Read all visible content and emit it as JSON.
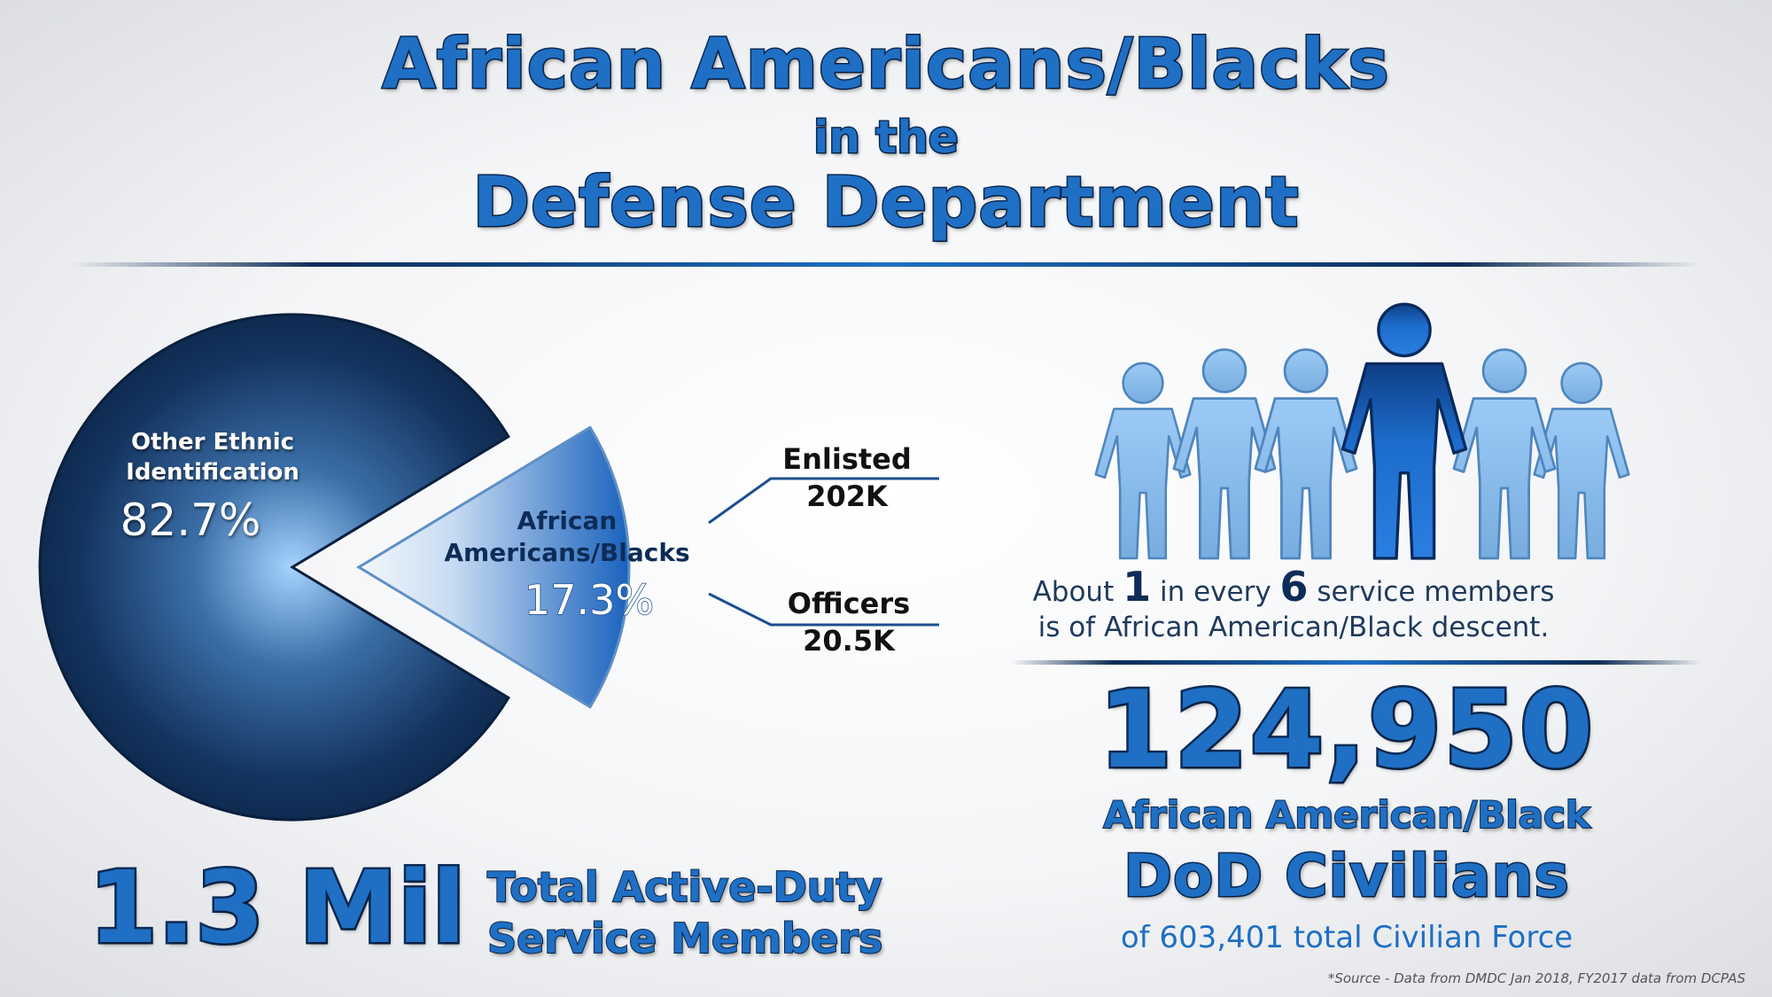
{
  "title": {
    "line1": "African Americans/Blacks",
    "line2": "in the",
    "line3": "Defense Department"
  },
  "colors": {
    "primary_blue": "#1f6fc4",
    "navy": "#0d2c57",
    "person_light": "#86b8ea",
    "person_highlight": "#1a64bf"
  },
  "chart_data": {
    "type": "pie",
    "slices": [
      {
        "label": "Other Ethnic Identification",
        "value": 82.7,
        "display": "82.7%"
      },
      {
        "label": "African Americans/Blacks",
        "value": 17.3,
        "display": "17.3%",
        "exploded": true
      }
    ],
    "breakdown": [
      {
        "label": "Enlisted",
        "value": "202K"
      },
      {
        "label": "Officers",
        "value": "20.5K"
      }
    ]
  },
  "pie_labels": {
    "other_line1": "Other Ethnic",
    "other_line2": "Identification",
    "other_value": "82.7%",
    "aa_line1": "African",
    "aa_line2": "Americans/Blacks",
    "aa_value": "17.3%"
  },
  "breakdown": {
    "enlisted_label": "Enlisted",
    "enlisted_value": "202K",
    "officers_label": "Officers",
    "officers_value": "20.5K"
  },
  "people_icon": {
    "icon": "people-group-icon",
    "total": 6,
    "highlighted": 1
  },
  "ratio": {
    "prefix": "About ",
    "num1": "1",
    "mid": " in every ",
    "num2": "6",
    "suffix": " service members",
    "line2": "is of African American/Black descent."
  },
  "civilians": {
    "number": "124,950",
    "label1": "African American/Black",
    "label2": "DoD Civilians",
    "total": "of 603,401 total Civilian Force"
  },
  "active_duty": {
    "number": "1.3 Mil",
    "label_line1": "Total Active-Duty",
    "label_line2": "Service Members"
  },
  "source": "*Source - Data from DMDC Jan 2018, FY2017 data from DCPAS"
}
